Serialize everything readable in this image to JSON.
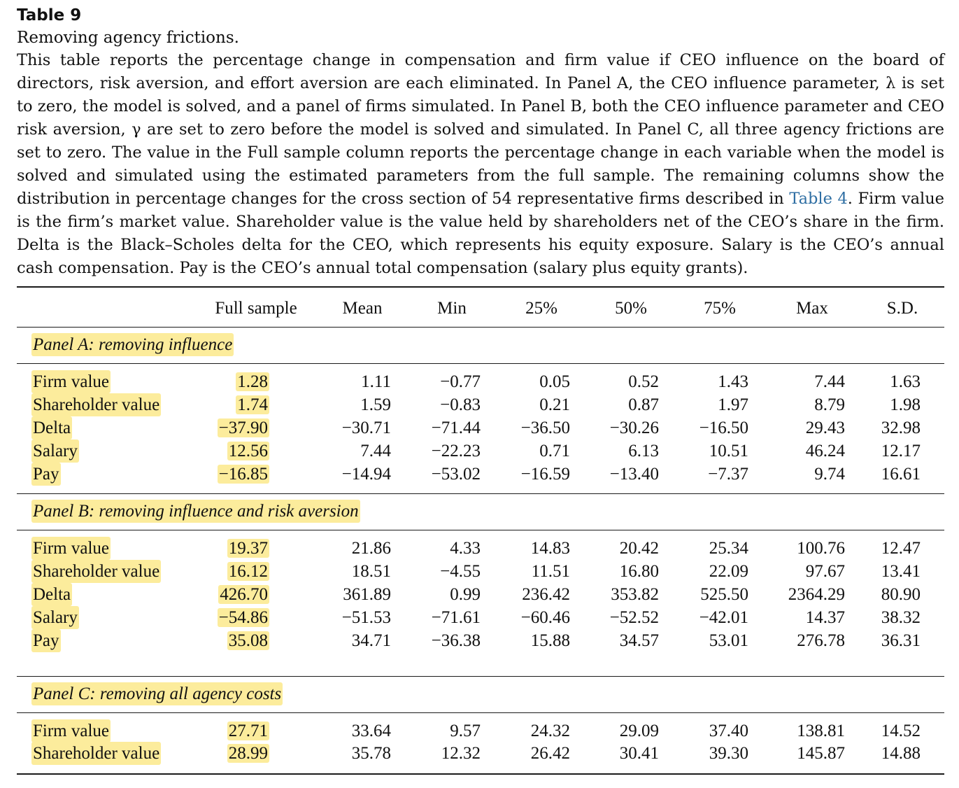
{
  "caption": {
    "table_number": "Table 9",
    "title": "Removing agency frictions.",
    "desc_before_link": "This table reports the percentage change in compensation and firm value if CEO influence on the board of directors, risk aversion, and effort aversion are each eliminated. In Panel A, the CEO influence parameter, λ is set to zero, the model is solved, and a panel of firms simulated. In Panel B, both the CEO influence parameter and CEO risk aversion, γ are set to zero before the model is solved and simulated. In Panel C, all three agency frictions are set to zero. The value in the Full sample column reports the percentage change in each variable when the model is solved and simulated using the estimated parameters from the full sample. The remaining columns show the distribution in percentage changes for the cross section of 54 representative firms described in ",
    "link_text": "Table 4",
    "desc_after_link": ". Firm value is the firm’s market value. Shareholder value is the value held by shareholders net of the CEO’s share in the firm. Delta is the Black–Scholes delta for the CEO, which represents his equity exposure. Salary is the CEO’s annual cash compensation. Pay is the CEO’s annual total compensation (salary plus equity grants)."
  },
  "columns": [
    "Full sample",
    "Mean",
    "Min",
    "25%",
    "50%",
    "75%",
    "Max",
    "S.D."
  ],
  "panels": [
    {
      "label": "Panel A: removing influence",
      "rows": [
        {
          "name": "Firm value",
          "values": [
            "1.28",
            "1.11",
            "−0.77",
            "0.05",
            "0.52",
            "1.43",
            "7.44",
            "1.63"
          ]
        },
        {
          "name": "Shareholder value",
          "values": [
            "1.74",
            "1.59",
            "−0.83",
            "0.21",
            "0.87",
            "1.97",
            "8.79",
            "1.98"
          ]
        },
        {
          "name": "Delta",
          "values": [
            "−37.90",
            "−30.71",
            "−71.44",
            "−36.50",
            "−30.26",
            "−16.50",
            "29.43",
            "32.98"
          ]
        },
        {
          "name": "Salary",
          "values": [
            "12.56",
            "7.44",
            "−22.23",
            "0.71",
            "6.13",
            "10.51",
            "46.24",
            "12.17"
          ]
        },
        {
          "name": "Pay",
          "values": [
            "−16.85",
            "−14.94",
            "−53.02",
            "−16.59",
            "−13.40",
            "−7.37",
            "9.74",
            "16.61"
          ]
        }
      ]
    },
    {
      "label": "Panel B: removing influence and risk aversion",
      "rows": [
        {
          "name": "Firm value",
          "values": [
            "19.37",
            "21.86",
            "4.33",
            "14.83",
            "20.42",
            "25.34",
            "100.76",
            "12.47"
          ]
        },
        {
          "name": "Shareholder value",
          "values": [
            "16.12",
            "18.51",
            "−4.55",
            "11.51",
            "16.80",
            "22.09",
            "97.67",
            "13.41"
          ]
        },
        {
          "name": "Delta",
          "values": [
            "426.70",
            "361.89",
            "0.99",
            "236.42",
            "353.82",
            "525.50",
            "2364.29",
            "80.90"
          ]
        },
        {
          "name": "Salary",
          "values": [
            "−54.86",
            "−51.53",
            "−71.61",
            "−60.46",
            "−52.52",
            "−42.01",
            "14.37",
            "38.32"
          ]
        },
        {
          "name": "Pay",
          "values": [
            "35.08",
            "34.71",
            "−36.38",
            "15.88",
            "34.57",
            "53.01",
            "276.78",
            "36.31"
          ]
        }
      ]
    },
    {
      "label": "Panel C: removing all agency costs",
      "rows": [
        {
          "name": "Firm value",
          "values": [
            "27.71",
            "33.64",
            "9.57",
            "24.32",
            "29.09",
            "37.40",
            "138.81",
            "14.52"
          ]
        },
        {
          "name": "Shareholder value",
          "values": [
            "28.99",
            "35.78",
            "12.32",
            "26.42",
            "30.41",
            "39.30",
            "145.87",
            "14.88"
          ]
        }
      ]
    }
  ]
}
